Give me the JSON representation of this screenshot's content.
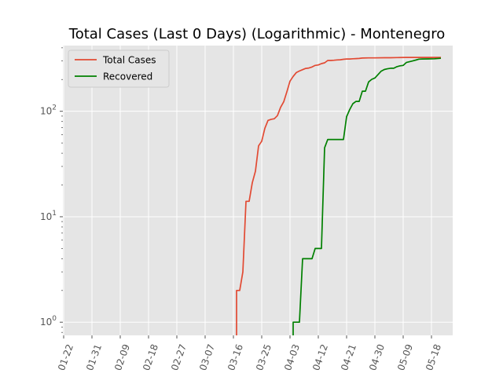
{
  "chart_data": {
    "type": "line",
    "title": "Total Cases (Last 0 Days) (Logarithmic) - Montenegro",
    "xlabel": "",
    "ylabel": "",
    "yscale": "log",
    "grid": true,
    "background": "#e5e5e5",
    "legend_placement": "top-left",
    "x_tick_labels": [
      "01-22",
      "01-31",
      "02-09",
      "02-18",
      "02-27",
      "03-07",
      "03-16",
      "03-25",
      "04-03",
      "04-12",
      "04-21",
      "04-30",
      "05-09",
      "05-18"
    ],
    "y_tick_labels": [
      {
        "value": 1,
        "base": "10",
        "exp": "0"
      },
      {
        "value": 10,
        "base": "10",
        "exp": "1"
      },
      {
        "value": 100,
        "base": "10",
        "exp": "2"
      }
    ],
    "ylim": [
      0.75,
      420
    ],
    "x_start_date": "2020-01-22",
    "series": [
      {
        "name": "Total Cases",
        "color": "#e24a33",
        "points": [
          [
            "2020-03-17",
            0.6
          ],
          [
            "2020-03-17",
            2
          ],
          [
            "2020-03-18",
            2
          ],
          [
            "2020-03-19",
            3
          ],
          [
            "2020-03-20",
            14
          ],
          [
            "2020-03-21",
            14
          ],
          [
            "2020-03-22",
            21
          ],
          [
            "2020-03-23",
            27
          ],
          [
            "2020-03-24",
            47
          ],
          [
            "2020-03-25",
            52
          ],
          [
            "2020-03-26",
            69
          ],
          [
            "2020-03-27",
            82
          ],
          [
            "2020-03-28",
            84
          ],
          [
            "2020-03-29",
            85
          ],
          [
            "2020-03-30",
            91
          ],
          [
            "2020-03-31",
            109
          ],
          [
            "2020-04-01",
            123
          ],
          [
            "2020-04-02",
            153
          ],
          [
            "2020-04-03",
            193
          ],
          [
            "2020-04-04",
            214
          ],
          [
            "2020-04-05",
            233
          ],
          [
            "2020-04-06",
            241
          ],
          [
            "2020-04-07",
            248
          ],
          [
            "2020-04-08",
            255
          ],
          [
            "2020-04-09",
            257
          ],
          [
            "2020-04-10",
            263
          ],
          [
            "2020-04-11",
            272
          ],
          [
            "2020-04-12",
            275
          ],
          [
            "2020-04-13",
            283
          ],
          [
            "2020-04-14",
            288
          ],
          [
            "2020-04-15",
            303
          ],
          [
            "2020-04-16",
            303
          ],
          [
            "2020-04-17",
            305
          ],
          [
            "2020-04-18",
            307
          ],
          [
            "2020-04-19",
            308
          ],
          [
            "2020-04-20",
            311
          ],
          [
            "2020-04-21",
            313
          ],
          [
            "2020-04-22",
            313
          ],
          [
            "2020-04-23",
            315
          ],
          [
            "2020-04-24",
            316
          ],
          [
            "2020-04-25",
            317
          ],
          [
            "2020-04-26",
            320
          ],
          [
            "2020-04-28",
            321
          ],
          [
            "2020-04-30",
            321
          ],
          [
            "2020-05-03",
            322
          ],
          [
            "2020-05-05",
            322
          ],
          [
            "2020-05-07",
            323
          ],
          [
            "2020-05-10",
            324
          ],
          [
            "2020-05-14",
            324
          ],
          [
            "2020-05-18",
            324
          ],
          [
            "2020-05-21",
            324
          ]
        ]
      },
      {
        "name": "Recovered",
        "color": "#008000",
        "points": [
          [
            "2020-04-04",
            0.6
          ],
          [
            "2020-04-04",
            1
          ],
          [
            "2020-04-06",
            1
          ],
          [
            "2020-04-07",
            4
          ],
          [
            "2020-04-09",
            4
          ],
          [
            "2020-04-10",
            4
          ],
          [
            "2020-04-11",
            5
          ],
          [
            "2020-04-13",
            5
          ],
          [
            "2020-04-14",
            45
          ],
          [
            "2020-04-15",
            54
          ],
          [
            "2020-04-20",
            54
          ],
          [
            "2020-04-21",
            89
          ],
          [
            "2020-04-22",
            104
          ],
          [
            "2020-04-23",
            118
          ],
          [
            "2020-04-24",
            124
          ],
          [
            "2020-04-25",
            124
          ],
          [
            "2020-04-26",
            155
          ],
          [
            "2020-04-27",
            155
          ],
          [
            "2020-04-28",
            190
          ],
          [
            "2020-04-29",
            201
          ],
          [
            "2020-04-30",
            207
          ],
          [
            "2020-05-01",
            223
          ],
          [
            "2020-05-02",
            240
          ],
          [
            "2020-05-03",
            249
          ],
          [
            "2020-05-04",
            253
          ],
          [
            "2020-05-05",
            256
          ],
          [
            "2020-05-06",
            256
          ],
          [
            "2020-05-07",
            265
          ],
          [
            "2020-05-08",
            270
          ],
          [
            "2020-05-09",
            272
          ],
          [
            "2020-05-10",
            290
          ],
          [
            "2020-05-11",
            295
          ],
          [
            "2020-05-12",
            300
          ],
          [
            "2020-05-13",
            306
          ],
          [
            "2020-05-14",
            312
          ],
          [
            "2020-05-15",
            313
          ],
          [
            "2020-05-17",
            314
          ],
          [
            "2020-05-19",
            315
          ],
          [
            "2020-05-21",
            318
          ]
        ]
      }
    ]
  }
}
